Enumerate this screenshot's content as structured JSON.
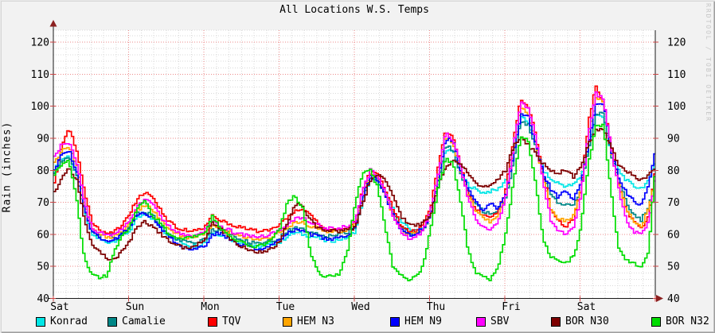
{
  "title": "All Locations W.S. Temps",
  "watermark": "RRDTOOL / TOBI OETIKER",
  "colors": {
    "background": "#f2f2f2",
    "canvas": "#ffffff",
    "axis": "#1a1a1a",
    "arrow": "#8b2020",
    "major_grid": "#ec8a8a",
    "minor_grid": "#d9d9d9",
    "axis_tick": "#cc4444",
    "text": "#000000",
    "watermark_text": "#c6c6c6"
  },
  "chart_data": {
    "type": "line",
    "title": "All Locations W.S. Temps",
    "ylabel": "Rain (inches)",
    "xlabel": "",
    "ylim": [
      40,
      124
    ],
    "y_ticks": [
      "40",
      "50",
      "60",
      "70",
      "80",
      "90",
      "100",
      "110",
      "120"
    ],
    "x_ticks": [
      "Sat",
      "Sun",
      "Mon",
      "Tue",
      "Wed",
      "Thu",
      "Fri",
      "Sat"
    ],
    "x_range_days": [
      0,
      8
    ],
    "x_step_days": 0.1,
    "grid": true,
    "legend_position": "bottom",
    "series": [
      {
        "name": "Konrad",
        "color": "#00e6e6",
        "values": [
          80,
          83.5,
          84.5,
          78,
          67,
          60,
          58.5,
          57.5,
          58,
          59.5,
          61,
          65,
          66,
          65,
          62.5,
          60,
          58.5,
          57.5,
          56.5,
          56.5,
          57.5,
          60.5,
          60,
          59,
          58,
          57.5,
          56.5,
          56,
          56.5,
          57,
          57.5,
          59.5,
          60.5,
          60,
          59.5,
          59,
          58,
          58,
          58.5,
          59,
          61,
          70.5,
          77.5,
          76.5,
          73,
          68,
          64,
          62,
          61,
          62,
          66,
          76,
          86,
          86.5,
          79,
          75.5,
          74,
          73,
          73.5,
          74,
          77,
          84,
          96.5,
          95,
          88,
          80,
          77,
          76,
          75,
          75.5,
          78,
          87,
          97,
          97,
          85,
          80,
          77,
          75,
          74.5,
          76.5,
          84
        ]
      },
      {
        "name": "Camalie",
        "color": "#008787",
        "values": [
          79,
          83,
          84.5,
          78,
          67.5,
          60.5,
          59.5,
          61,
          58.5,
          60,
          62,
          66.5,
          67,
          66,
          63,
          60.5,
          59,
          58,
          57.5,
          57.5,
          58.5,
          61.5,
          61.5,
          60.5,
          59,
          58,
          57.5,
          57,
          57.5,
          58,
          59,
          61,
          62,
          61.5,
          60.5,
          60.5,
          59.5,
          59.5,
          60,
          60.5,
          62.5,
          71.5,
          78,
          77,
          72.5,
          66.5,
          62.5,
          60.5,
          60,
          61.5,
          66,
          76.5,
          87.5,
          86.5,
          79,
          73.5,
          69.5,
          67,
          66.5,
          67.5,
          71,
          82.5,
          95.5,
          94,
          87,
          78.5,
          72,
          70,
          69,
          69,
          74,
          86.5,
          98,
          97.5,
          85,
          77,
          70,
          66,
          64.5,
          68.5,
          78
        ]
      },
      {
        "name": "TQV",
        "color": "#ff0000",
        "values": [
          76,
          88,
          93,
          86,
          73,
          64,
          61.5,
          60.5,
          61,
          63,
          66,
          71,
          73,
          71.5,
          68,
          64.5,
          62.5,
          61.5,
          61,
          61.5,
          62,
          66,
          64.5,
          63.5,
          62.5,
          62,
          61.5,
          61,
          61,
          62,
          63,
          65.5,
          67.5,
          68,
          66,
          63.5,
          62,
          61.5,
          61.5,
          62,
          64,
          74,
          80,
          79,
          74,
          68,
          63,
          61,
          61,
          63,
          68,
          81,
          92.5,
          90,
          82,
          73,
          68,
          66,
          65,
          67,
          74,
          89,
          102.5,
          100,
          91,
          78,
          68,
          64,
          62.5,
          65,
          74,
          95,
          106.5,
          101,
          88,
          76,
          68,
          64,
          62,
          66,
          82
        ]
      },
      {
        "name": "HEM N3",
        "color": "#ffa500",
        "values": [
          82,
          86,
          87.5,
          81,
          69,
          61.5,
          60,
          59,
          59.5,
          61,
          63,
          67.5,
          69,
          68,
          65,
          62.5,
          60.5,
          59.5,
          59,
          59.5,
          60.5,
          63,
          62,
          61,
          60,
          59.5,
          58.5,
          58,
          58.5,
          59.5,
          60.5,
          62.5,
          63.5,
          63.5,
          62.5,
          62,
          61,
          61,
          61,
          61.5,
          63,
          72.5,
          78.5,
          77.5,
          72,
          66,
          62,
          60,
          60,
          62,
          66,
          78,
          90.5,
          88.5,
          80,
          72,
          67,
          65,
          64,
          66,
          72,
          85.5,
          99.5,
          97.5,
          88.5,
          77,
          68,
          65,
          64,
          66,
          74,
          90.5,
          102.5,
          101.5,
          86.5,
          75,
          68,
          64,
          62.5,
          68,
          80
        ]
      },
      {
        "name": "HEM N9",
        "color": "#0000ff",
        "values": [
          80,
          85,
          86,
          79.5,
          68,
          60.5,
          59,
          58,
          58.5,
          60,
          62,
          66,
          66.5,
          65.5,
          62.5,
          60,
          57.5,
          56,
          55.5,
          55.5,
          56.5,
          60,
          60.5,
          59,
          57.5,
          56.5,
          56,
          55.5,
          56,
          57,
          58,
          60.5,
          61.5,
          61,
          60,
          59.5,
          58.5,
          58.5,
          59,
          60,
          62,
          71.5,
          78,
          77,
          72,
          66,
          62,
          60,
          60,
          62,
          66,
          77,
          89.5,
          89.5,
          80,
          74,
          70,
          67.5,
          70,
          68,
          72,
          84.5,
          97.5,
          96.5,
          88,
          79,
          74,
          71.5,
          74,
          71,
          76,
          88.5,
          100.5,
          101,
          86,
          78,
          73,
          70.5,
          69,
          76,
          87
        ]
      },
      {
        "name": "SBV",
        "color": "#ff00ff",
        "values": [
          84,
          88,
          89,
          82,
          70,
          62,
          60.5,
          59.5,
          60,
          62,
          64,
          69,
          71,
          69.5,
          66,
          63,
          61,
          60,
          59.5,
          60,
          61,
          64,
          62.5,
          61.5,
          60.5,
          60,
          59.5,
          59,
          59.5,
          60.5,
          61,
          63,
          65,
          65,
          64,
          63,
          62,
          62,
          62,
          62.5,
          64,
          74,
          80,
          78.5,
          73,
          66,
          61,
          59,
          59,
          61,
          67,
          79,
          91.5,
          89.5,
          81,
          71,
          65,
          62,
          61.5,
          63.5,
          72,
          87,
          101.5,
          99.5,
          90,
          76,
          64.5,
          61,
          60,
          62,
          72,
          92,
          104,
          102,
          87,
          74,
          64.5,
          61,
          60,
          64,
          80
        ]
      },
      {
        "name": "BOR N30",
        "color": "#7d0000",
        "values": [
          73,
          78,
          80.5,
          77,
          65,
          57,
          55,
          52.5,
          52,
          55,
          58,
          62,
          64,
          62.5,
          60.5,
          58.5,
          57,
          56,
          56,
          57,
          58,
          64,
          62,
          59.5,
          57.5,
          56,
          55,
          54.5,
          55,
          55.5,
          58,
          64,
          69.5,
          68.5,
          64.5,
          62,
          61,
          61,
          61,
          61.5,
          62,
          70,
          77,
          79,
          77,
          72,
          66,
          63,
          62.5,
          63.5,
          66,
          75,
          81,
          83,
          82,
          79,
          76,
          75,
          75.5,
          77,
          80,
          87.5,
          90.5,
          88,
          85,
          82,
          80,
          79,
          80.5,
          78,
          81,
          88,
          92.5,
          92.5,
          87,
          82,
          80,
          78,
          77,
          78.5,
          81
        ]
      },
      {
        "name": "BOR N32",
        "color": "#00dd00",
        "values": [
          79,
          82,
          83,
          70,
          52,
          47.5,
          46.5,
          47,
          55,
          60,
          62,
          68,
          71,
          66,
          64,
          60.5,
          59,
          58.5,
          59,
          59.5,
          60,
          66,
          62,
          60.5,
          58.5,
          57.5,
          56.5,
          56,
          57,
          58.5,
          62,
          70,
          72,
          68,
          55,
          48,
          47,
          47,
          48,
          55,
          70,
          79,
          80,
          74.5,
          62,
          50,
          47,
          46,
          46.5,
          50,
          62,
          74,
          83.5,
          82.5,
          70,
          55,
          48,
          46.5,
          46,
          50,
          60,
          76,
          90.5,
          89,
          75,
          58,
          53,
          52,
          51,
          53,
          62,
          82,
          93.5,
          94,
          73,
          56,
          52,
          51,
          50,
          55,
          84
        ]
      }
    ]
  }
}
